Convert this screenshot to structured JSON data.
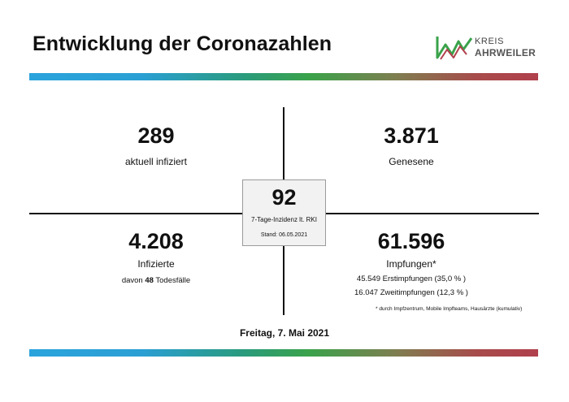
{
  "title": "Entwicklung der Coronazahlen",
  "logo": {
    "line1": "KREIS",
    "line2": "AHRWEILER"
  },
  "colors": {
    "gradient_start": "#2aa3dc",
    "gradient_mid": "#3aa24a",
    "gradient_end": "#b0404c"
  },
  "quadrants": {
    "infected_current": {
      "value": "289",
      "label": "aktuell infiziert"
    },
    "recovered": {
      "value": "3.871",
      "label": "Genesene"
    },
    "infected_total": {
      "value": "4.208",
      "label": "Infizierte",
      "deaths_prefix": "davon ",
      "deaths_count": "48",
      "deaths_suffix": " Todesfälle"
    },
    "vaccinations": {
      "value": "61.596",
      "label": "Impfungen*",
      "first": "45.549 Erstimpfungen (35,0 % )",
      "second": "16.047 Zweitimpfungen (12,3 % )",
      "footnote": "* durch Impfzentrum, Mobile Impfteams, Hausärzte (kumulativ)"
    }
  },
  "incidence": {
    "value": "92",
    "label": "7-Tage-Inzidenz lt. RKI",
    "stand": "Stand: 06.05.2021"
  },
  "date": "Freitag, 7. Mai 2021"
}
